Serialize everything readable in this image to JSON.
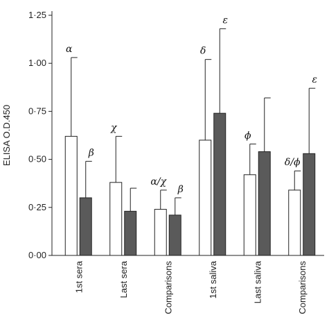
{
  "chart_data": {
    "type": "bar",
    "ylabel": "ELISA O.D.450",
    "ylim": [
      0,
      1.25
    ],
    "yticks": [
      0,
      0.25,
      0.5,
      0.75,
      1.0,
      1.25
    ],
    "ytick_labels": [
      "0·00",
      "0·25",
      "0·50",
      "0·75",
      "1·00",
      "1·25"
    ],
    "categories": [
      "1st sera",
      "Last sera",
      "Comparisons",
      "1st saliva",
      "Last saliva",
      "Comparisons"
    ],
    "series": [
      {
        "fill": "#ffffff",
        "values": [
          0.62,
          0.38,
          0.24,
          0.6,
          0.42,
          0.34
        ],
        "error_upper": [
          1.03,
          0.62,
          0.34,
          1.02,
          0.58,
          0.44
        ],
        "annotations": [
          "α",
          "χ",
          "α/χ",
          "δ",
          "ϕ",
          "δ/ϕ"
        ]
      },
      {
        "fill": "#5a5a5a",
        "values": [
          0.3,
          0.23,
          0.21,
          0.74,
          0.54,
          0.53
        ],
        "error_upper": [
          0.49,
          0.35,
          0.3,
          1.18,
          0.82,
          0.87
        ],
        "annotations": [
          "β",
          "",
          "β",
          "ε",
          "",
          "ε"
        ]
      }
    ]
  }
}
